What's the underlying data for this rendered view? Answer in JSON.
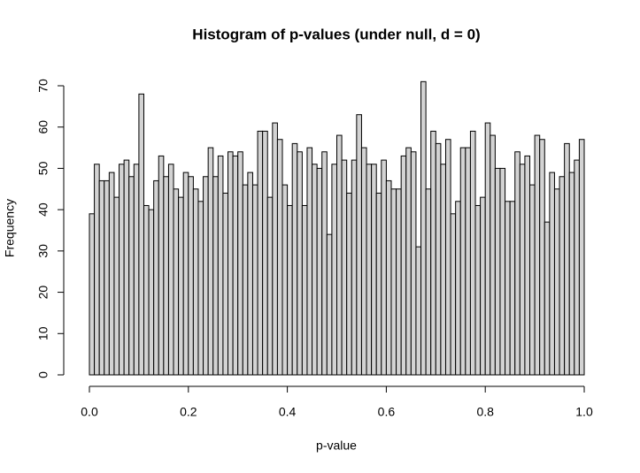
{
  "chart_data": {
    "type": "histogram",
    "title": "Histogram of p-values (under null, d = 0)",
    "x_label": "p-value",
    "y_label": "Frequency",
    "bins": [
      0,
      0.01,
      0.02,
      0.03,
      0.04,
      0.05,
      0.06,
      0.07,
      0.08,
      0.09,
      0.1,
      0.11,
      0.12,
      0.13,
      0.14,
      0.15,
      0.16,
      0.17,
      0.18,
      0.19,
      0.2,
      0.21,
      0.22,
      0.23,
      0.24,
      0.25,
      0.26,
      0.27,
      0.28,
      0.29,
      0.3,
      0.31,
      0.32,
      0.33,
      0.34,
      0.35,
      0.36,
      0.37,
      0.38,
      0.39,
      0.4,
      0.41,
      0.42,
      0.43,
      0.44,
      0.45,
      0.46,
      0.47,
      0.48,
      0.49,
      0.5,
      0.51,
      0.52,
      0.53,
      0.54,
      0.55,
      0.56,
      0.57,
      0.58,
      0.59,
      0.6,
      0.61,
      0.62,
      0.63,
      0.64,
      0.65,
      0.66,
      0.67,
      0.68,
      0.69,
      0.7,
      0.71,
      0.72,
      0.73,
      0.74,
      0.75,
      0.76,
      0.77,
      0.78,
      0.79,
      0.8,
      0.81,
      0.82,
      0.83,
      0.84,
      0.85,
      0.86,
      0.87,
      0.88,
      0.89,
      0.9,
      0.91,
      0.92,
      0.93,
      0.94,
      0.95,
      0.96,
      0.97,
      0.98,
      0.99,
      1
    ],
    "values": [
      39,
      51,
      47,
      47,
      49,
      43,
      51,
      52,
      48,
      51,
      68,
      41,
      40,
      47,
      53,
      48,
      51,
      45,
      43,
      49,
      48,
      45,
      42,
      48,
      55,
      48,
      53,
      44,
      54,
      53,
      54,
      46,
      49,
      46,
      59,
      59,
      43,
      61,
      57,
      46,
      41,
      56,
      54,
      41,
      55,
      51,
      50,
      54,
      34,
      51,
      58,
      52,
      44,
      52,
      63,
      55,
      51,
      51,
      44,
      52,
      47,
      45,
      45,
      53,
      55,
      54,
      31,
      71,
      45,
      59,
      56,
      51,
      57,
      39,
      42,
      55,
      55,
      59,
      41,
      43,
      61,
      58,
      50,
      50,
      42,
      42,
      54,
      51,
      53,
      46,
      58,
      57,
      37,
      49,
      45,
      48,
      56,
      49,
      52,
      57
    ],
    "color": "#d3d3d3",
    "xlim": [
      0,
      1
    ],
    "xticks": [
      {
        "value": 0,
        "label": "0.0"
      },
      0.2,
      0.4,
      0.6,
      0.8,
      {
        "value": 1,
        "label": "1.0"
      }
    ],
    "ylim": [
      0,
      70
    ],
    "yticks": [
      0,
      10,
      20,
      30,
      40,
      50,
      60,
      70
    ]
  }
}
